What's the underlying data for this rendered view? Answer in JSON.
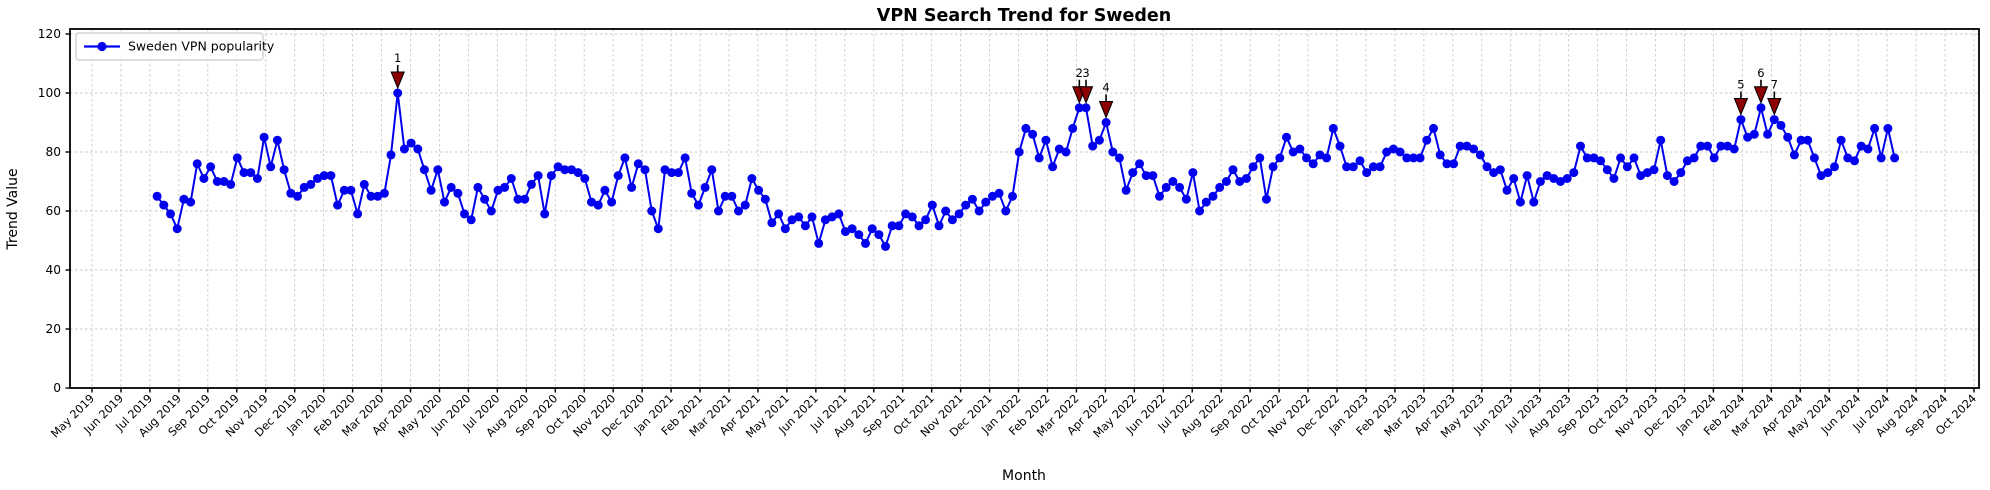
{
  "chart": {
    "title": "VPN Search Trend for Sweden",
    "xlabel": "Month",
    "ylabel": "Trend Value",
    "legend": {
      "label": "Sweden VPN popularity",
      "position": "upper left"
    }
  },
  "chart_data": {
    "type": "line",
    "title": "VPN Search Trend for Sweden",
    "xlabel": "Month",
    "ylabel": "Trend Value",
    "ylim": [
      0,
      120
    ],
    "yticks": [
      0,
      20,
      40,
      60,
      80,
      100,
      120
    ],
    "grid": true,
    "legend_position": "upper left",
    "xtick_labels": [
      "May 2019",
      "Jun 2019",
      "Jul 2019",
      "Aug 2019",
      "Sep 2019",
      "Oct 2019",
      "Nov 2019",
      "Dec 2019",
      "Jan 2020",
      "Feb 2020",
      "Mar 2020",
      "Apr 2020",
      "May 2020",
      "Jun 2020",
      "Jul 2020",
      "Aug 2020",
      "Sep 2020",
      "Oct 2020",
      "Nov 2020",
      "Dec 2020",
      "Jan 2021",
      "Feb 2021",
      "Mar 2021",
      "Apr 2021",
      "May 2021",
      "Jun 2021",
      "Jul 2021",
      "Aug 2021",
      "Sep 2021",
      "Oct 2021",
      "Nov 2021",
      "Dec 2021",
      "Jan 2022",
      "Feb 2022",
      "Mar 2022",
      "Apr 2022",
      "May 2022",
      "Jun 2022",
      "Jul 2022",
      "Aug 2022",
      "Sep 2022",
      "Oct 2022",
      "Nov 2022",
      "Dec 2022",
      "Jan 2023",
      "Feb 2023",
      "Mar 2023",
      "Apr 2023",
      "May 2023",
      "Jun 2023",
      "Jul 2023",
      "Aug 2023",
      "Sep 2023",
      "Oct 2023",
      "Nov 2023",
      "Dec 2023",
      "Jan 2024",
      "Feb 2024",
      "Mar 2024",
      "Apr 2024",
      "May 2024",
      "Jun 2024",
      "Jul 2024",
      "Aug 2024",
      "Sep 2024",
      "Oct 2024"
    ],
    "series": [
      {
        "name": "Sweden VPN popularity",
        "frequency": "weekly",
        "x_start_date": "2019-07-07",
        "x_step_days": 7,
        "values": [
          65,
          62,
          59,
          54,
          64,
          63,
          76,
          71,
          75,
          70,
          70,
          69,
          78,
          73,
          73,
          71,
          85,
          75,
          84,
          74,
          66,
          65,
          68,
          69,
          71,
          72,
          72,
          62,
          67,
          67,
          59,
          69,
          65,
          65,
          66,
          79,
          100,
          81,
          83,
          81,
          74,
          67,
          74,
          63,
          68,
          66,
          59,
          57,
          68,
          64,
          60,
          67,
          68,
          71,
          64,
          64,
          69,
          72,
          59,
          72,
          75,
          74,
          74,
          73,
          71,
          63,
          62,
          67,
          63,
          72,
          78,
          68,
          76,
          74,
          60,
          54,
          74,
          73,
          73,
          78,
          66,
          62,
          68,
          74,
          60,
          65,
          65,
          60,
          62,
          71,
          67,
          64,
          56,
          59,
          54,
          57,
          58,
          55,
          58,
          49,
          57,
          58,
          59,
          53,
          54,
          52,
          49,
          54,
          52,
          48,
          55,
          55,
          59,
          58,
          55,
          57,
          62,
          55,
          60,
          57,
          59,
          62,
          64,
          60,
          63,
          65,
          66,
          60,
          65,
          80,
          88,
          86,
          78,
          84,
          75,
          81,
          80,
          88,
          95,
          95,
          82,
          84,
          90,
          80,
          78,
          67,
          73,
          76,
          72,
          72,
          65,
          68,
          70,
          68,
          64,
          73,
          60,
          63,
          65,
          68,
          70,
          74,
          70,
          71,
          75,
          78,
          64,
          75,
          78,
          85,
          80,
          81,
          78,
          76,
          79,
          78,
          88,
          82,
          75,
          75,
          77,
          73,
          75,
          75,
          80,
          81,
          80,
          78,
          78,
          78,
          84,
          88,
          79,
          76,
          76,
          82,
          82,
          81,
          79,
          75,
          73,
          74,
          67,
          71,
          63,
          72,
          63,
          70,
          72,
          71,
          70,
          71,
          73,
          82,
          78,
          78,
          77,
          74,
          71,
          78,
          75,
          78,
          72,
          73,
          74,
          84,
          72,
          70,
          73,
          77,
          78,
          82,
          82,
          78,
          82,
          82,
          81,
          91,
          85,
          86,
          95,
          86,
          91,
          89,
          85,
          79,
          84,
          84,
          78,
          72,
          73,
          75,
          84,
          78,
          77,
          82,
          81,
          88,
          78,
          88,
          78
        ]
      }
    ],
    "annotations": [
      {
        "label": "1",
        "week_index": 36,
        "value": 100
      },
      {
        "label": "2",
        "week_index": 138,
        "value": 95
      },
      {
        "label": "3",
        "week_index": 139,
        "value": 95
      },
      {
        "label": "4",
        "week_index": 142,
        "value": 90
      },
      {
        "label": "5",
        "week_index": 237,
        "value": 91
      },
      {
        "label": "6",
        "week_index": 240,
        "value": 95
      },
      {
        "label": "7",
        "week_index": 242,
        "value": 91
      }
    ],
    "colors": {
      "line": "#0000ee",
      "marker": "#0000ee",
      "annotation_marker": "#8b0000",
      "annotation_text": "#8b0000",
      "grid": "#c9c9c9",
      "axis": "#000000",
      "legend_border": "#cccccc",
      "background": "#ffffff"
    }
  }
}
